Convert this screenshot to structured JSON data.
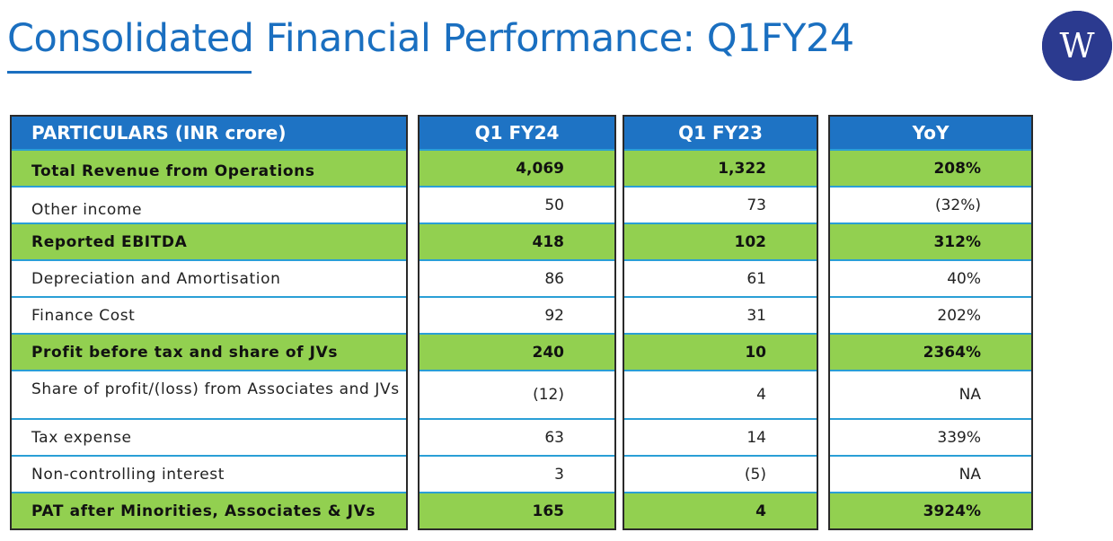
{
  "title": "Consolidated Financial Performance: Q1FY24",
  "logo": {
    "icon": "w-logo-icon",
    "letter": "W"
  },
  "table": {
    "headers": [
      "PARTICULARS (INR crore)",
      "Q1 FY24",
      "Q1 FY23",
      "YoY"
    ],
    "rows": [
      {
        "label": "Total Revenue from Operations",
        "q1fy24": "4,069",
        "q1fy23": "1,322",
        "yoy": "208%",
        "highlight": true
      },
      {
        "label": "Other income",
        "q1fy24": "50",
        "q1fy23": "73",
        "yoy": "(32%)",
        "highlight": false
      },
      {
        "label": "Reported EBITDA",
        "q1fy24": "418",
        "q1fy23": "102",
        "yoy": "312%",
        "highlight": true
      },
      {
        "label": "Depreciation and Amortisation",
        "q1fy24": "86",
        "q1fy23": "61",
        "yoy": "40%",
        "highlight": false
      },
      {
        "label": "Finance Cost",
        "q1fy24": "92",
        "q1fy23": "31",
        "yoy": "202%",
        "highlight": false
      },
      {
        "label": "Profit before tax and share of JVs",
        "q1fy24": "240",
        "q1fy23": "10",
        "yoy": "2364%",
        "highlight": true
      },
      {
        "label": "Share of profit/(loss) from Associates and JVs",
        "q1fy24": "(12)",
        "q1fy23": "4",
        "yoy": "NA",
        "highlight": false
      },
      {
        "label": "Tax expense",
        "q1fy24": "63",
        "q1fy23": "14",
        "yoy": "339%",
        "highlight": false
      },
      {
        "label": "Non-controlling interest",
        "q1fy24": "3",
        "q1fy23": "(5)",
        "yoy": "NA",
        "highlight": false
      },
      {
        "label": "PAT after Minorities, Associates & JVs",
        "q1fy24": "165",
        "q1fy23": "4",
        "yoy": "3924%",
        "highlight": true
      }
    ]
  },
  "colors": {
    "title": "#1a6fc0",
    "header": "#1e73c4",
    "highlight": "#92d050",
    "logo": "#2b3a8f"
  }
}
